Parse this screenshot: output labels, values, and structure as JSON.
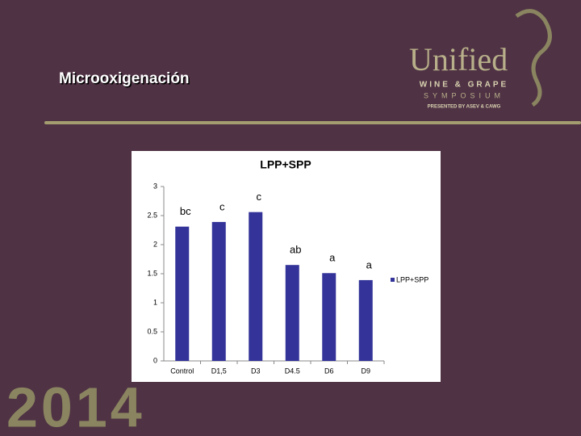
{
  "slide": {
    "title": "Microoxigenación",
    "logo": {
      "name": "Unified",
      "line1": "WINE & GRAPE",
      "line2": "SYMPOSIUM",
      "line3": "PRESENTED BY ASEV & CAWG"
    },
    "year": "2014"
  },
  "chart_data": {
    "type": "bar",
    "title": "LPP+SPP",
    "categories": [
      "Control",
      "D1,5",
      "D3",
      "D4.5",
      "D6",
      "D9"
    ],
    "series": [
      {
        "name": "LPP+SPP",
        "color": "#333399",
        "values": [
          2.31,
          2.39,
          2.56,
          1.65,
          1.51,
          1.39
        ]
      }
    ],
    "annotations": [
      "bc",
      "c",
      "c",
      "ab",
      "a",
      "a"
    ],
    "ylim": [
      0,
      3
    ],
    "yticks": [
      0,
      0.5,
      1,
      1.5,
      2,
      2.5,
      3
    ],
    "grid": false,
    "legend": "right"
  }
}
